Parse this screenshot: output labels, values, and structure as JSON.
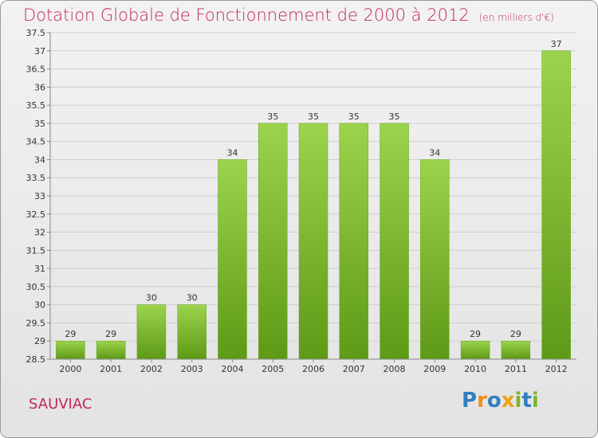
{
  "title": "Dotation Globale de Fonctionnement de 2000 à 2012",
  "subtitle": "(en milliers d'€)",
  "commune": "SAUVIAC",
  "logo": {
    "letters": [
      "P",
      "r",
      "o",
      "x",
      "i",
      "t",
      "i"
    ],
    "colors": [
      "#2f7fc1",
      "#f28c1c",
      "#2f7fc1",
      "#e8a019",
      "#7ab829",
      "#2f7fc1",
      "#7ab829"
    ]
  },
  "colors": {
    "bar_top": "#9cd34d",
    "bar_bottom": "#5e9a16",
    "title": "#c1285a"
  },
  "chart_data": {
    "type": "bar",
    "title": "Dotation Globale de Fonctionnement de 2000 à 2012",
    "subtitle": "(en milliers d'€)",
    "categories": [
      "2000",
      "2001",
      "2002",
      "2003",
      "2004",
      "2005",
      "2006",
      "2007",
      "2008",
      "2009",
      "2010",
      "2011",
      "2012"
    ],
    "values": [
      29,
      29,
      30,
      30,
      34,
      35,
      35,
      35,
      35,
      34,
      29,
      29,
      37
    ],
    "data_labels": [
      "29",
      "29",
      "30",
      "30",
      "34",
      "35",
      "35",
      "35",
      "35",
      "34",
      "29",
      "29",
      "37"
    ],
    "ylim": [
      28.5,
      37.5
    ],
    "yticks": [
      "28.5",
      "29",
      "29.5",
      "30",
      "30.5",
      "31",
      "31.5",
      "32",
      "32.5",
      "33",
      "33.5",
      "34",
      "34.5",
      "35",
      "35.5",
      "36",
      "36.5",
      "37",
      "37.5"
    ],
    "grid": true,
    "legend": "none"
  }
}
